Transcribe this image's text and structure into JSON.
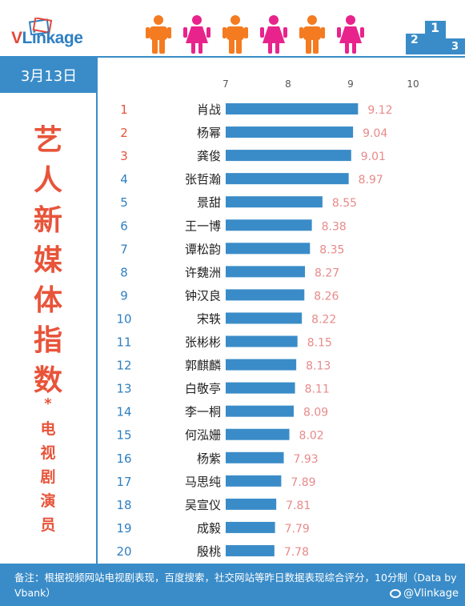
{
  "header": {
    "brand_v": "V",
    "brand_rest": "Linkage",
    "podium_digits": [
      "2",
      "1",
      "3"
    ]
  },
  "date": "3月13日",
  "title_chars": [
    "艺",
    "人",
    "新",
    "媒",
    "体",
    "指",
    "数"
  ],
  "title_star": "*",
  "subtitle_chars": [
    "电",
    "视",
    "剧",
    "演",
    "员"
  ],
  "footer": {
    "note": "备注：根据视频网站电视剧表现，百度搜索，社交网站等昨日数据表现综合评分，10分制（Data by Vbank）",
    "weibo": "@Vlinkage"
  },
  "colors": {
    "bar": "#3a8cc8",
    "rank_top": "#e8543a",
    "rank_other": "#2f7fc1",
    "value_label": "#e88a8a",
    "male": "#f47b20",
    "female": "#e8238c",
    "brand_blue": "#2f7fc1",
    "brand_red": "#e2483a"
  },
  "chart_data": {
    "type": "bar",
    "orientation": "horizontal",
    "xlim": [
      7,
      10
    ],
    "xticks": [
      "7",
      "8",
      "9",
      "10"
    ],
    "ranks": [
      "1",
      "2",
      "3",
      "4",
      "5",
      "6",
      "7",
      "8",
      "9",
      "10",
      "11",
      "12",
      "13",
      "14",
      "15",
      "16",
      "17",
      "18",
      "19",
      "20"
    ],
    "categories": [
      "肖战",
      "杨幂",
      "龚俊",
      "张哲瀚",
      "景甜",
      "王一博",
      "谭松韵",
      "许魏洲",
      "钟汉良",
      "宋轶",
      "张彬彬",
      "郭麒麟",
      "白敬亭",
      "李一桐",
      "何泓姗",
      "杨紫",
      "马思纯",
      "吴宣仪",
      "成毅",
      "殷桃"
    ],
    "values": [
      9.12,
      9.04,
      9.01,
      8.97,
      8.55,
      8.38,
      8.35,
      8.27,
      8.26,
      8.22,
      8.15,
      8.13,
      8.11,
      8.09,
      8.02,
      7.93,
      7.89,
      7.81,
      7.79,
      7.78
    ],
    "value_labels": [
      "9.12",
      "9.04",
      "9.01",
      "8.97",
      "8.55",
      "8.38",
      "8.35",
      "8.27",
      "8.26",
      "8.22",
      "8.15",
      "8.13",
      "8.11",
      "8.09",
      "8.02",
      "7.93",
      "7.89",
      "7.81",
      "7.79",
      "7.78"
    ],
    "grid": false
  }
}
